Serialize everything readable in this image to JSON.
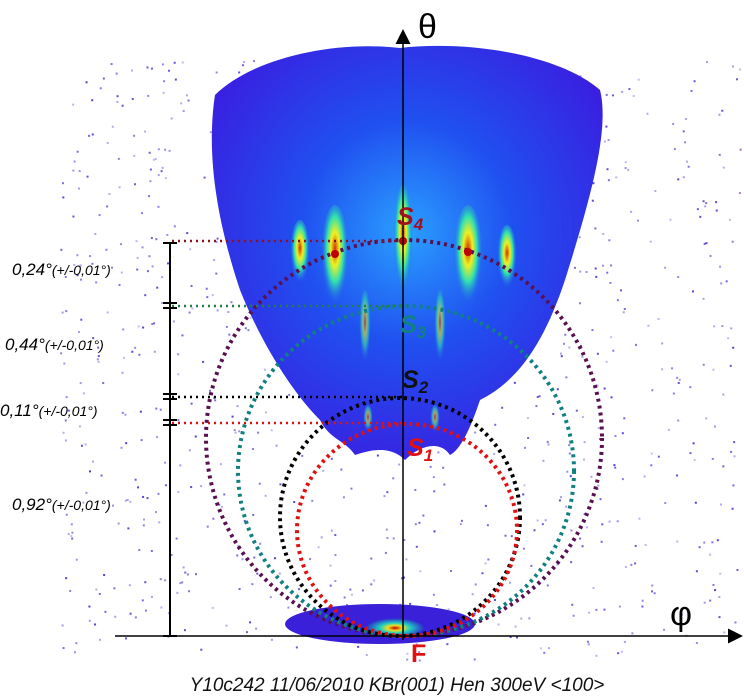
{
  "axes": {
    "vertical": "θ",
    "horizontal": "φ"
  },
  "spots": [
    {
      "letter": "S",
      "index": "4"
    },
    {
      "letter": "S",
      "index": "3"
    },
    {
      "letter": "S",
      "index": "2"
    },
    {
      "letter": "S",
      "index": "1"
    }
  ],
  "specular": "F",
  "measurements": [
    {
      "angle": "0,24°",
      "error": "(+/-0,01°)"
    },
    {
      "angle": "0,44°",
      "error": "(+/-0,01°)"
    },
    {
      "angle": "0,11°",
      "error": "(+/-0,01°)"
    },
    {
      "angle": "0,92°",
      "error": "(+/-0,01°)"
    }
  ],
  "caption": "Y10c242 11/06/2010 KBr(001) Hen 300eV <100>"
}
